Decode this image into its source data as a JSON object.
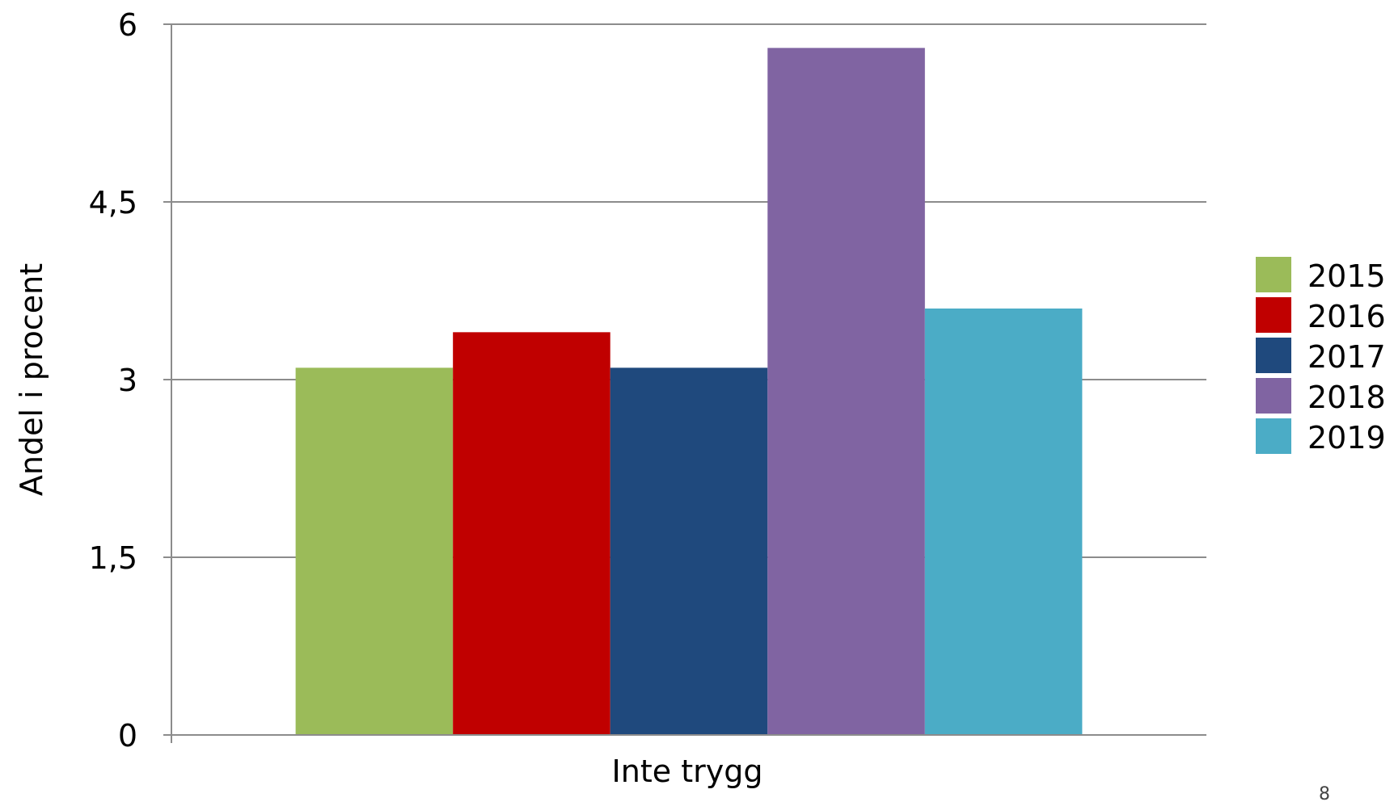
{
  "chart_data": {
    "type": "bar",
    "title": "",
    "xlabel": "Inte trygg",
    "ylabel": "Andel i procent",
    "categories": [
      "Inte trygg"
    ],
    "ylim": [
      0,
      6
    ],
    "yticks": [
      0,
      1.5,
      3,
      4.5,
      6
    ],
    "ytick_labels": [
      "0",
      "1,5",
      "3",
      "4,5",
      "6"
    ],
    "grid": true,
    "legend_position": "right",
    "series": [
      {
        "name": "2015",
        "values": [
          3.1
        ],
        "color": "#9BBB59"
      },
      {
        "name": "2016",
        "values": [
          3.4
        ],
        "color": "#C00000"
      },
      {
        "name": "2017",
        "values": [
          3.1
        ],
        "color": "#1F497D"
      },
      {
        "name": "2018",
        "values": [
          5.8
        ],
        "color": "#8064A2"
      },
      {
        "name": "2019",
        "values": [
          3.6
        ],
        "color": "#4BACC6"
      }
    ]
  },
  "slide_number": "8"
}
